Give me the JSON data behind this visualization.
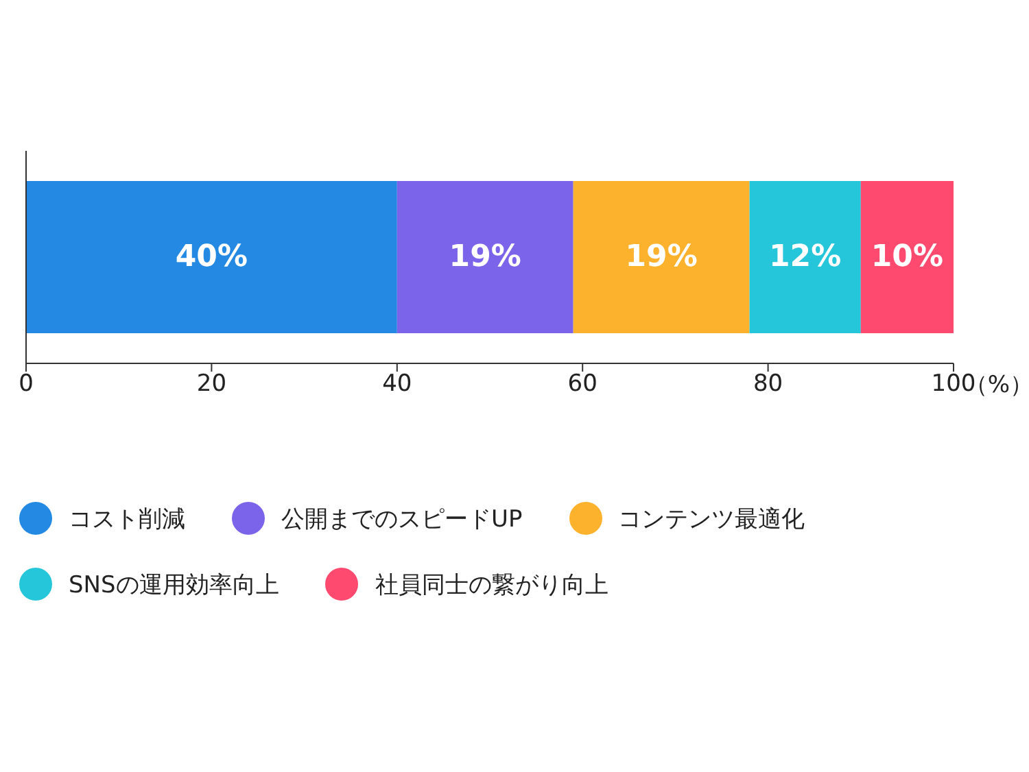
{
  "chart_data": {
    "type": "bar",
    "orientation": "horizontal",
    "stacked": true,
    "categories": [
      null
    ],
    "xlabel": "（%）",
    "xlim": [
      0,
      100
    ],
    "xticks": [
      0,
      20,
      40,
      60,
      80,
      100
    ],
    "legend": "bottom",
    "grid": false,
    "series": [
      {
        "name": "コスト削減",
        "color": "#2389e3",
        "values": [
          40
        ],
        "value_labels": [
          "40%"
        ]
      },
      {
        "name": "公開までのスピードUP",
        "color": "#7b63ea",
        "values": [
          19
        ],
        "value_labels": [
          "19%"
        ]
      },
      {
        "name": "コンテンツ最適化",
        "color": "#fdb22d",
        "values": [
          19
        ],
        "value_labels": [
          "19%"
        ]
      },
      {
        "name": "SNSの運用効率向上",
        "color": "#26c6da",
        "values": [
          12
        ],
        "value_labels": [
          "12%"
        ]
      },
      {
        "name": "社員同士の繋がり向上",
        "color": "#fd4a6e",
        "values": [
          10
        ],
        "value_labels": [
          "10%"
        ]
      }
    ]
  }
}
